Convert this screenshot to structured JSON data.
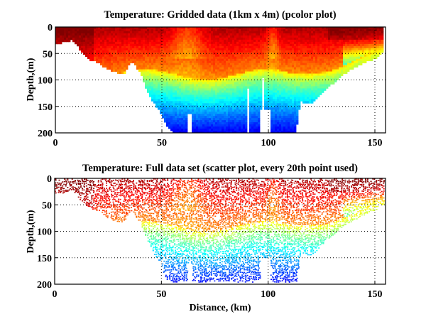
{
  "figure": {
    "background": "#ffffff"
  },
  "chart_data": [
    {
      "type": "heatmap",
      "title": "Temperature: Gridded data (1km x 4m) (pcolor plot)",
      "xlabel": "",
      "ylabel": "Depth,(m)",
      "xlim": [
        0,
        155
      ],
      "ylim": [
        200,
        0
      ],
      "y_reversed": true,
      "xticks": [
        0,
        50,
        100,
        150
      ],
      "yticks": [
        0,
        50,
        100,
        150,
        200
      ],
      "xtick_labels": [
        "0",
        "50",
        "100",
        "150"
      ],
      "ytick_labels": [
        "0",
        "50",
        "100",
        "150",
        "200"
      ],
      "grid": "dotted",
      "colormap": "jet",
      "cell_size_km": 1,
      "cell_size_m": 4,
      "bottom_depth_profile": {
        "distance_km": [
          0,
          3,
          5,
          8,
          10,
          13,
          15,
          20,
          25,
          28,
          32,
          34,
          36,
          38,
          40,
          44,
          47,
          50,
          52,
          55,
          60,
          65,
          70,
          75,
          80,
          85,
          88,
          90,
          95,
          100,
          105,
          110,
          113,
          115,
          117,
          120,
          125,
          130,
          135,
          140,
          145,
          150,
          152,
          155
        ],
        "depth_m": [
          30,
          30,
          28,
          25,
          35,
          50,
          60,
          68,
          80,
          84,
          90,
          75,
          63,
          75,
          88,
          130,
          148,
          165,
          185,
          200,
          200,
          200,
          200,
          200,
          200,
          200,
          200,
          200,
          200,
          200,
          200,
          200,
          200,
          140,
          143,
          145,
          125,
          108,
          90,
          78,
          68,
          60,
          52,
          45
        ]
      },
      "data_gaps": [
        {
          "distance_km": [
            62.5,
            64
          ],
          "depth_from_m": 166
        },
        {
          "distance_km": [
            90,
            91
          ],
          "depth_from_m": 116
        },
        {
          "distance_km": [
            96,
            101
          ],
          "depth_from_m": 157
        },
        {
          "distance_km": [
            97,
            98
          ],
          "depth_from_m": 98
        }
      ],
      "colorbar_range": "cold (deep, blue) to warm (surface, dark red)"
    },
    {
      "type": "scatter",
      "title": "Temperature: Full data set (scatter plot, every 20th point used)",
      "xlabel": "Distance, (km)",
      "ylabel": "Depth,(m)",
      "xlim": [
        0,
        155
      ],
      "ylim": [
        200,
        0
      ],
      "y_reversed": true,
      "xticks": [
        0,
        50,
        100,
        150
      ],
      "yticks": [
        0,
        50,
        100,
        150,
        200
      ],
      "xtick_labels": [
        "0",
        "50",
        "100",
        "150"
      ],
      "ytick_labels": [
        "0",
        "50",
        "100",
        "150",
        "200"
      ],
      "grid": "dotted",
      "colormap": "jet",
      "sampling": "every 20th point",
      "bottom_depth_profile": {
        "distance_km": [
          0,
          3,
          5,
          8,
          10,
          13,
          15,
          20,
          25,
          28,
          32,
          34,
          36,
          38,
          40,
          44,
          47,
          50,
          52,
          55,
          60,
          65,
          70,
          75,
          80,
          85,
          88,
          90,
          95,
          100,
          105,
          110,
          113,
          115,
          117,
          120,
          125,
          130,
          135,
          140,
          145,
          150,
          152,
          155
        ],
        "depth_m": [
          28,
          28,
          25,
          22,
          30,
          45,
          52,
          62,
          75,
          80,
          85,
          70,
          60,
          72,
          85,
          125,
          145,
          165,
          190,
          195,
          195,
          195,
          195,
          195,
          195,
          195,
          195,
          195,
          195,
          195,
          195,
          195,
          195,
          140,
          143,
          145,
          125,
          108,
          90,
          78,
          68,
          60,
          52,
          45
        ]
      },
      "data_gaps": [
        {
          "distance_km": [
            62,
            64
          ],
          "depth_from_m": 160
        },
        {
          "distance_km": [
            96,
            101
          ],
          "depth_from_m": 150
        }
      ]
    }
  ]
}
